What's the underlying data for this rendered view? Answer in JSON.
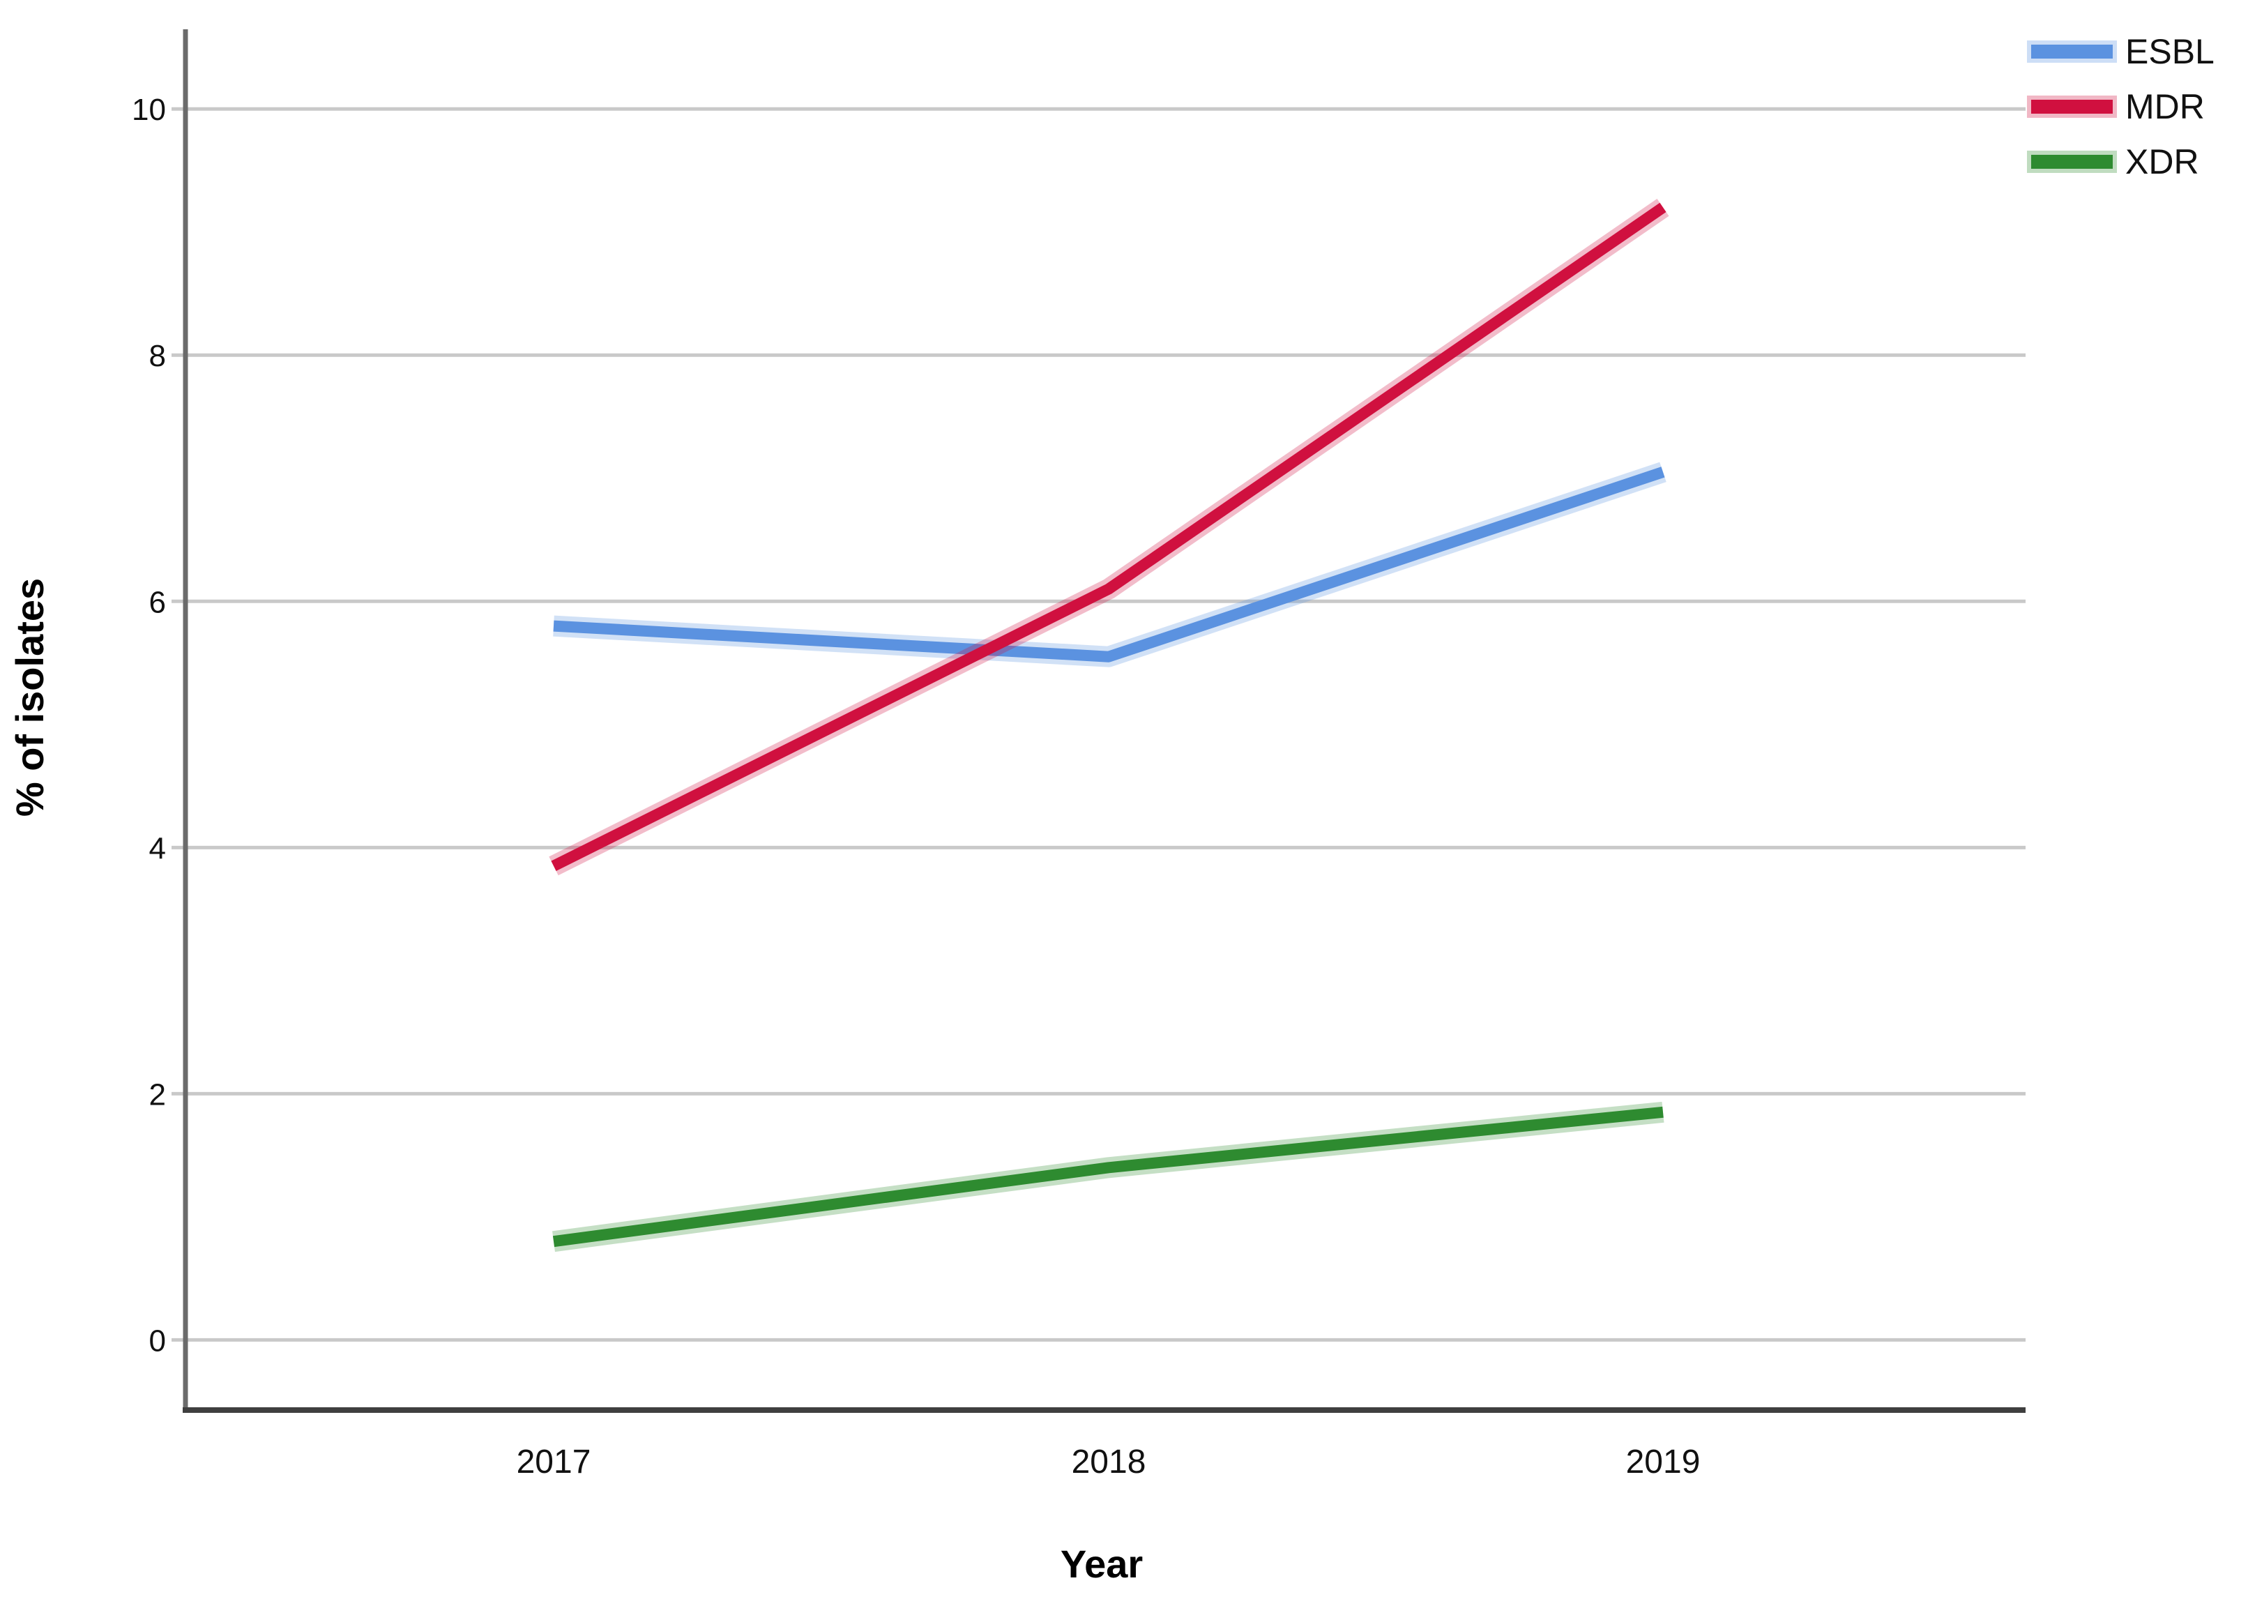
{
  "chart_data": {
    "type": "line",
    "title": "",
    "xlabel": "Year",
    "ylabel": "% of isolates",
    "categories": [
      "2017",
      "2018",
      "2019"
    ],
    "series": [
      {
        "name": "ESBL",
        "color": "#5B92E0",
        "values": [
          5.8,
          5.55,
          7.05
        ]
      },
      {
        "name": "MDR",
        "color": "#D0103F",
        "values": [
          3.85,
          6.1,
          9.2
        ]
      },
      {
        "name": "XDR",
        "color": "#2E8B30",
        "values": [
          0.8,
          1.4,
          1.85
        ]
      }
    ],
    "y_ticks": [
      0,
      2,
      4,
      6,
      8,
      10
    ],
    "ylim": [
      -0.57,
      10.63
    ],
    "grid": "horizontal-only",
    "legend_position": "top-right",
    "colors": {
      "grid": "#c9c9c9",
      "y_axis_line": "#6b6b6b",
      "x_axis_line": "#3f3f3f",
      "tick_label": "#111111",
      "axis_title": "#000000",
      "legend_label": "#111111",
      "background": "#ffffff"
    }
  }
}
